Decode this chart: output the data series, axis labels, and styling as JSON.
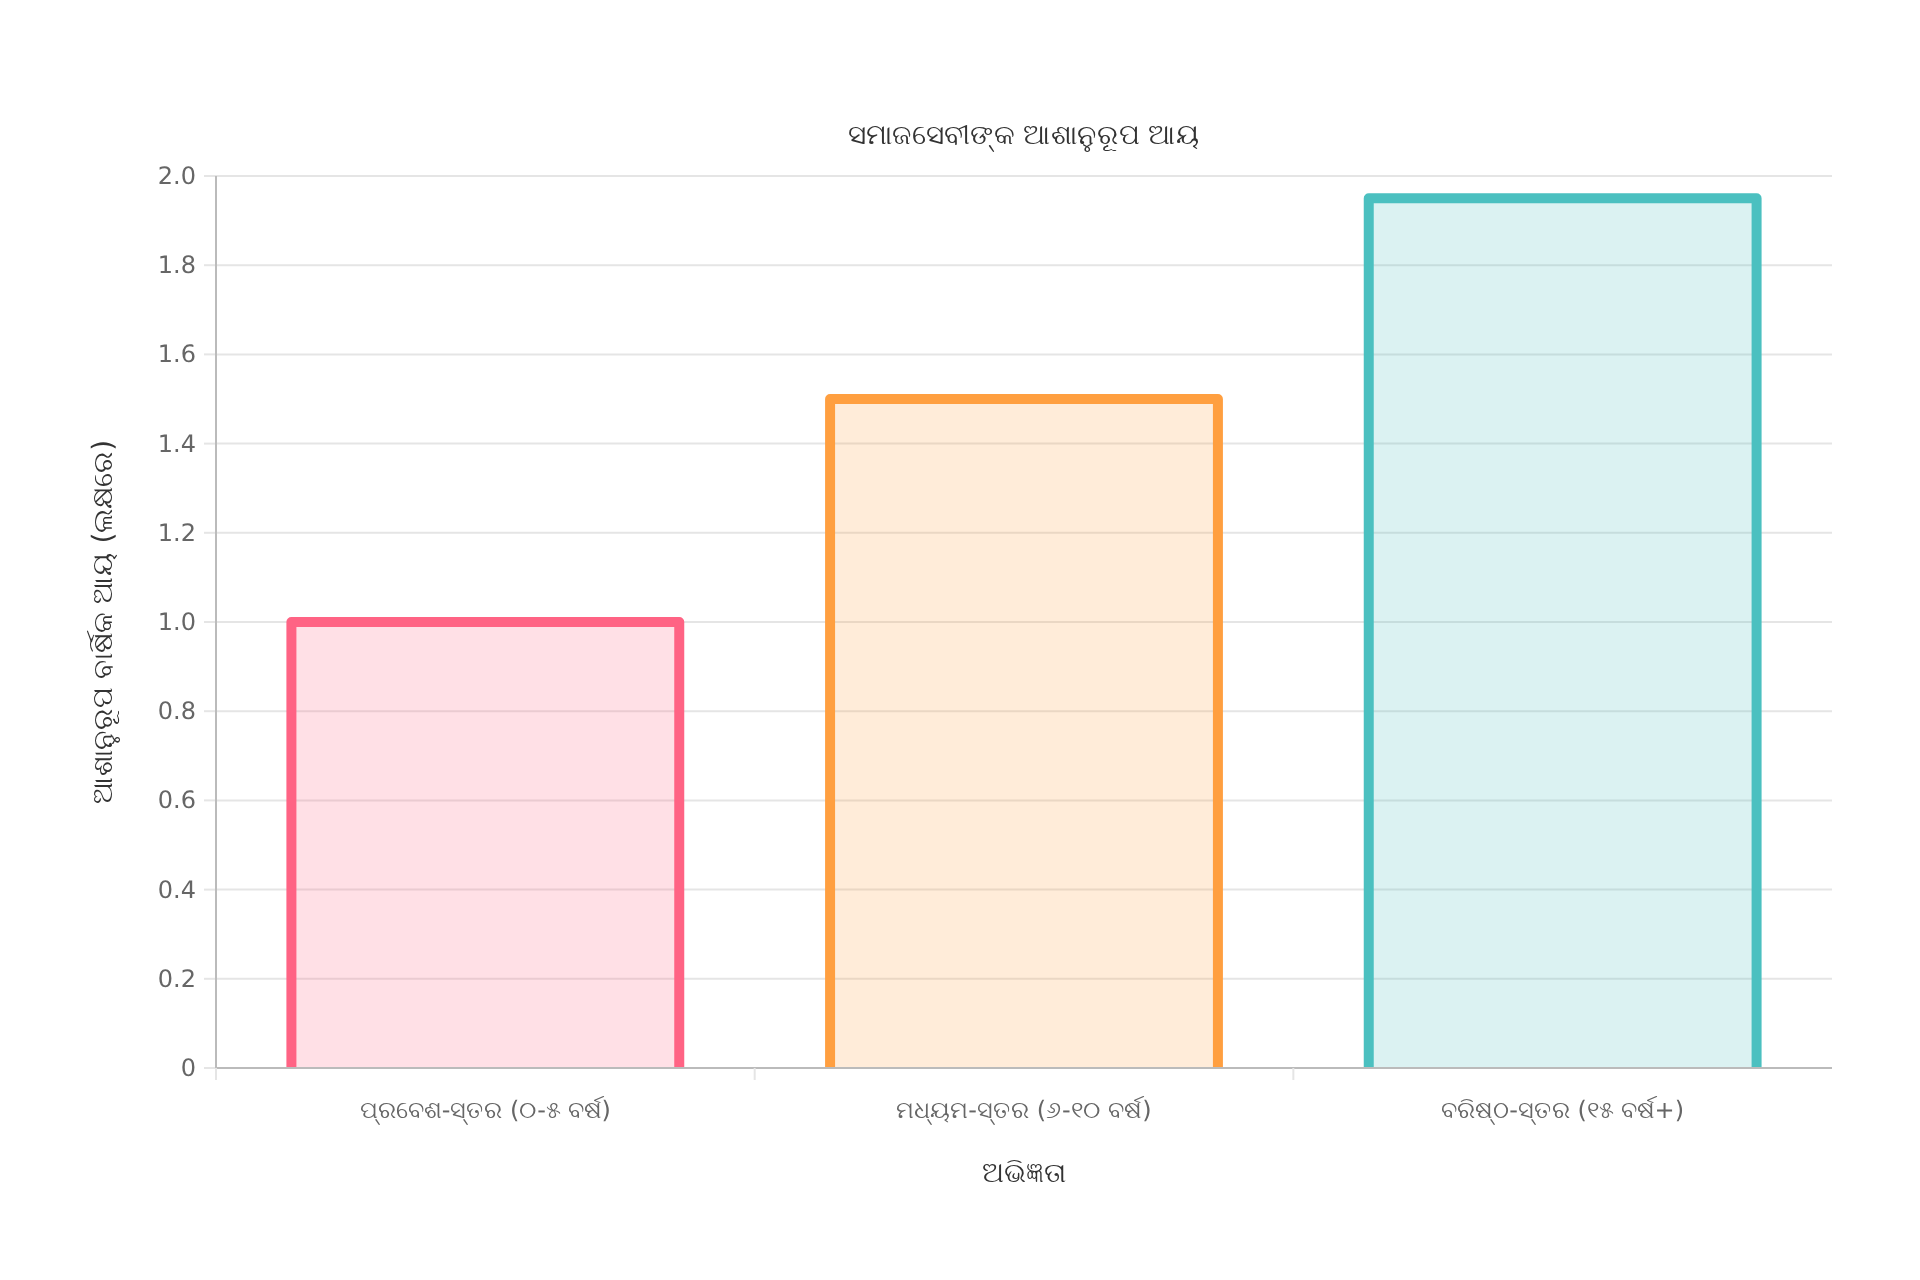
{
  "chart_data": {
    "type": "bar",
    "title": "ସମାଜସେବୀଙ୍କ ଆଶାନୁରୂପ ଆୟ",
    "xlabel": "ଅଭିଜ୍ଞତା",
    "ylabel": "ଆଶାନୁରୂପ ବାର୍ଷିକ ଆୟ (ଲକ୍ଷରେ)",
    "categories": [
      "ପ୍ରବେଶ-ସ୍ତର (୦-୫ ବର୍ଷ)",
      "ମଧ୍ୟମ-ସ୍ତର (୬-୧୦ ବର୍ଷ)",
      "ବରିଷ୍ଠ-ସ୍ତର (୧୫ ବର୍ଷ+)"
    ],
    "values": [
      1.0,
      1.5,
      1.95
    ],
    "colors": [
      "#ff6384",
      "#ff9f40",
      "#4bc0c0"
    ],
    "ylim": [
      0,
      2.0
    ],
    "yticks": [
      0,
      {
        "value": 0.2,
        "label": "0.2"
      },
      {
        "value": 0.4,
        "label": "0.4"
      },
      {
        "value": 0.6,
        "label": "0.6"
      },
      {
        "value": 0.8,
        "label": "0.8"
      },
      {
        "value": 1.0,
        "label": "1.0"
      },
      {
        "value": 1.2,
        "label": "1.2"
      },
      {
        "value": 1.4,
        "label": "1.4"
      },
      {
        "value": 1.6,
        "label": "1.6"
      },
      {
        "value": 1.8,
        "label": "1.8"
      },
      {
        "value": 2.0,
        "label": "2.0"
      }
    ],
    "grid": "y"
  }
}
